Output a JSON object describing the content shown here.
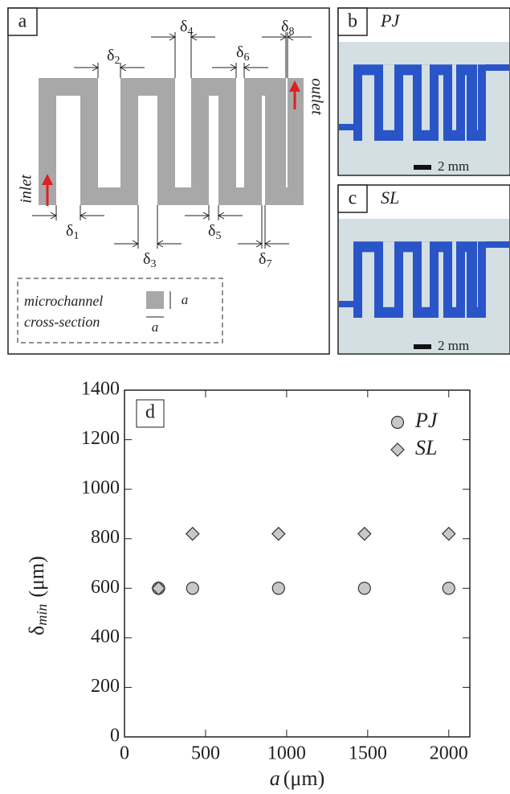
{
  "panel_a": {
    "label": "a",
    "deltas": [
      {
        "base": "δ",
        "sub": "1"
      },
      {
        "base": "δ",
        "sub": "2"
      },
      {
        "base": "δ",
        "sub": "3"
      },
      {
        "base": "δ",
        "sub": "4"
      },
      {
        "base": "δ",
        "sub": "5"
      },
      {
        "base": "δ",
        "sub": "6"
      },
      {
        "base": "δ",
        "sub": "7"
      },
      {
        "base": "δ",
        "sub": "8"
      }
    ],
    "inlet": "inlet",
    "outlet": "outlet",
    "cross_section": {
      "lines": [
        "microchannel",
        "cross-section"
      ],
      "dim_labels": [
        "a",
        "a"
      ]
    }
  },
  "panel_b": {
    "label": "b",
    "name": "PJ",
    "scale": "2 mm"
  },
  "panel_c": {
    "label": "c",
    "name": "SL",
    "scale": "2 mm"
  },
  "chart_data": {
    "type": "scatter",
    "panel_label": "d",
    "xlabel": {
      "base": "a",
      "unit": "(μm)"
    },
    "ylabel": {
      "base": "δ",
      "sub": "min",
      "unit": "(μm)"
    },
    "xlim": [
      0,
      2130
    ],
    "ylim": [
      0,
      1400
    ],
    "xticks": [
      0,
      500,
      1000,
      1500,
      2000
    ],
    "yticks": [
      0,
      200,
      400,
      600,
      800,
      1000,
      1200,
      1400
    ],
    "legend": "upper right",
    "series": [
      {
        "name": "PJ",
        "marker": "circle",
        "color": "#c8c8c8",
        "x": [
          210,
          420,
          950,
          1480,
          2000
        ],
        "values": [
          600,
          600,
          600,
          600,
          600
        ]
      },
      {
        "name": "SL",
        "marker": "diamond",
        "color": "#c8c8c8",
        "x": [
          210,
          420,
          950,
          1480,
          2000
        ],
        "values": [
          600,
          820,
          820,
          820,
          820
        ]
      }
    ]
  }
}
